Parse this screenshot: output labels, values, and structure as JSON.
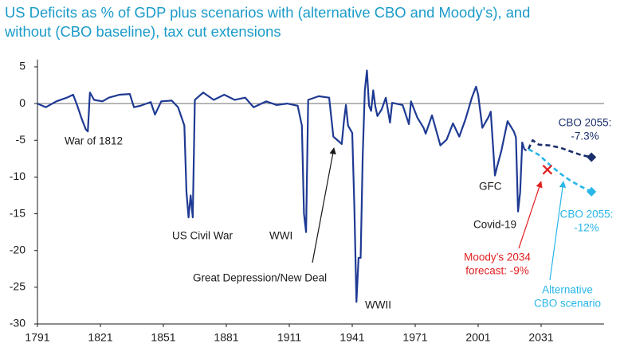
{
  "chart_data": {
    "type": "line",
    "title": [
      "US Deficits as % of GDP plus scenarios with (alternative CBO and Moody's), and",
      "without (CBO baseline), tax cut extensions"
    ],
    "xlim": [
      1791,
      2061
    ],
    "ylim": [
      -30,
      6
    ],
    "xticks": [
      1791,
      1821,
      1851,
      1881,
      1911,
      1941,
      1971,
      2001,
      2031
    ],
    "yticks": [
      5,
      0,
      -5,
      -10,
      -15,
      -20,
      -25,
      -30
    ],
    "series": [
      {
        "color": "#1f3a93",
        "dash": false,
        "end_marker": false,
        "x": [
          1791,
          1795,
          1800,
          1805,
          1808,
          1810,
          1812,
          1814,
          1815,
          1816,
          1818,
          1822,
          1825,
          1830,
          1835,
          1837,
          1840,
          1845,
          1847,
          1850,
          1855,
          1858,
          1861,
          1862,
          1863,
          1864,
          1865,
          1866,
          1870,
          1875,
          1880,
          1885,
          1890,
          1894,
          1900,
          1905,
          1910,
          1915,
          1917,
          1918,
          1919,
          1920,
          1925,
          1930,
          1932,
          1934,
          1936,
          1937,
          1938,
          1939,
          1941,
          1942,
          1943,
          1944,
          1945,
          1946,
          1947,
          1948,
          1949,
          1950,
          1951,
          1952,
          1953,
          1955,
          1957,
          1959,
          1960,
          1965,
          1968,
          1969,
          1972,
          1975,
          1976,
          1979,
          1983,
          1986,
          1989,
          1992,
          1995,
          1998,
          2000,
          2001,
          2003,
          2006,
          2007,
          2009,
          2010,
          2012,
          2015,
          2018,
          2019,
          2020,
          2021,
          2022,
          2023,
          2024
        ],
        "values": [
          0,
          -0.5,
          0.3,
          0.8,
          1.2,
          -0.3,
          -2,
          -3.5,
          -3.8,
          1.5,
          0.5,
          0.3,
          0.8,
          1.2,
          1.3,
          -0.5,
          -0.3,
          0.2,
          -1.5,
          0.3,
          0.4,
          -0.5,
          -3,
          -12,
          -15.5,
          -12.5,
          -15.5,
          0.5,
          1.5,
          0.5,
          1.2,
          0.5,
          0.8,
          -0.5,
          0.3,
          -0.2,
          0,
          -0.3,
          -3,
          -15,
          -17.5,
          0.5,
          1,
          0.8,
          -4.5,
          -5,
          -5.5,
          -2.5,
          -0.2,
          -3,
          -4,
          -14,
          -27,
          -21,
          -21,
          -7,
          1.8,
          4.5,
          -0.3,
          -1,
          1.8,
          -0.4,
          -1.7,
          -0.8,
          0.8,
          -2.6,
          0.1,
          -0.2,
          -2.8,
          0.3,
          -1.9,
          -3.3,
          -4.1,
          -1.6,
          -5.7,
          -4.9,
          -2.7,
          -4.5,
          -2.1,
          0.8,
          2.3,
          1.2,
          -3.3,
          -1.8,
          -1.1,
          -9.8,
          -8.6,
          -6.5,
          -2.4,
          -3.8,
          -4.6,
          -14.7,
          -12.1,
          -5.3,
          -6.2,
          -6.4
        ]
      },
      {
        "color": "#1b2f6b",
        "dash": true,
        "end_marker": true,
        "x": [
          2025,
          2026,
          2027,
          2030,
          2035,
          2040,
          2045,
          2050,
          2055
        ],
        "values": [
          -6.2,
          -5.5,
          -5,
          -5.6,
          -5.7,
          -6,
          -6.5,
          -7,
          -7.3
        ]
      },
      {
        "color": "#29b6e8",
        "dash": true,
        "end_marker": true,
        "x": [
          2025,
          2030,
          2035,
          2040,
          2045,
          2050,
          2055
        ],
        "values": [
          -6.2,
          -7,
          -8.3,
          -9.5,
          -10.5,
          -11.3,
          -12
        ]
      }
    ],
    "markers": [
      {
        "x": 2034,
        "value": -9,
        "color": "#e02020"
      }
    ],
    "annotations": [
      {
        "lines": [
          "War of 1812"
        ],
        "color": "#1a1a1a"
      },
      {
        "lines": [
          "US Civil War"
        ],
        "color": "#1a1a1a"
      },
      {
        "lines": [
          "WWI"
        ],
        "color": "#1a1a1a"
      },
      {
        "lines": [
          "Great Depression/New Deal"
        ],
        "color": "#1a1a1a"
      },
      {
        "lines": [
          "WWII"
        ],
        "color": "#1a1a1a"
      },
      {
        "lines": [
          "GFC"
        ],
        "color": "#1a1a1a"
      },
      {
        "lines": [
          "Covid-19"
        ],
        "color": "#1a1a1a"
      },
      {
        "lines": [
          "CBO 2055:",
          "-7.3%"
        ],
        "color": "#1b2f6b"
      },
      {
        "lines": [
          "CBO 2055:",
          "-12%"
        ],
        "color": "#29b6e8"
      },
      {
        "lines": [
          "Moody’s 2034",
          "forecast: -9%"
        ],
        "color": "#e02020"
      },
      {
        "lines": [
          "Alternative",
          "CBO scenario"
        ],
        "color": "#29b6e8"
      }
    ]
  }
}
